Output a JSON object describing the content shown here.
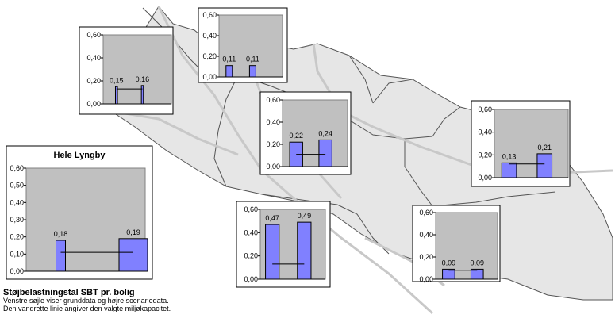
{
  "legend": {
    "title": "Støjbelastningstal SBT pr. bolig",
    "line1": "Venstre søjle viser grunddata og højre scenariedata.",
    "line2": "Den vandrette linie angiver den valgte miljøkapacitet."
  },
  "colors": {
    "bar": "#8080ff",
    "plot_bg": "#c0c0c0",
    "map_fill": "#e6e6e6",
    "map_line": "#555555",
    "road": "#c8c8c8"
  },
  "chart_data": [
    {
      "type": "bar",
      "title": "Hele Lyngby",
      "ticks": [
        "0,00",
        "0,10",
        "0,20",
        "0,30",
        "0,40",
        "0,50",
        "0,60"
      ],
      "ylim": [
        0,
        0.6
      ],
      "values": [
        0.18,
        0.19
      ],
      "labels": [
        "0,18",
        "0,19"
      ],
      "capacity": 0.11
    },
    {
      "type": "bar",
      "title": "",
      "ticks": [
        "0,00",
        "0,20",
        "0,40",
        "0,60"
      ],
      "ylim": [
        0,
        0.6
      ],
      "values": [
        0.15,
        0.16
      ],
      "labels": [
        "0,15",
        "0,16"
      ],
      "capacity": 0.13
    },
    {
      "type": "bar",
      "title": "",
      "ticks": [
        "0,00",
        "0,20",
        "0,40",
        "0,60"
      ],
      "ylim": [
        0,
        0.6
      ],
      "values": [
        0.11,
        0.11
      ],
      "labels": [
        "0,11",
        "0,11"
      ],
      "capacity": 0.0
    },
    {
      "type": "bar",
      "title": "",
      "ticks": [
        "0,00",
        "0,20",
        "0,40",
        "0,60"
      ],
      "ylim": [
        0,
        0.6
      ],
      "values": [
        0.22,
        0.24
      ],
      "labels": [
        "0,22",
        "0,24"
      ],
      "capacity": 0.11
    },
    {
      "type": "bar",
      "title": "",
      "ticks": [
        "0,00",
        "0,20",
        "0,40",
        "0,60"
      ],
      "ylim": [
        0,
        0.6
      ],
      "values": [
        0.13,
        0.21
      ],
      "labels": [
        "0,13",
        "0,21"
      ],
      "capacity": 0.12
    },
    {
      "type": "bar",
      "title": "",
      "ticks": [
        "0,00",
        "0,20",
        "0,40",
        "0,60"
      ],
      "ylim": [
        0,
        0.6
      ],
      "values": [
        0.47,
        0.49
      ],
      "labels": [
        "0,47",
        "0,49"
      ],
      "capacity": 0.13
    },
    {
      "type": "bar",
      "title": "",
      "ticks": [
        "0,00",
        "0,20",
        "0,40",
        "0,60"
      ],
      "ylim": [
        0,
        0.6
      ],
      "values": [
        0.09,
        0.09
      ],
      "labels": [
        "0,09",
        "0,09"
      ],
      "capacity": 0.08
    }
  ]
}
